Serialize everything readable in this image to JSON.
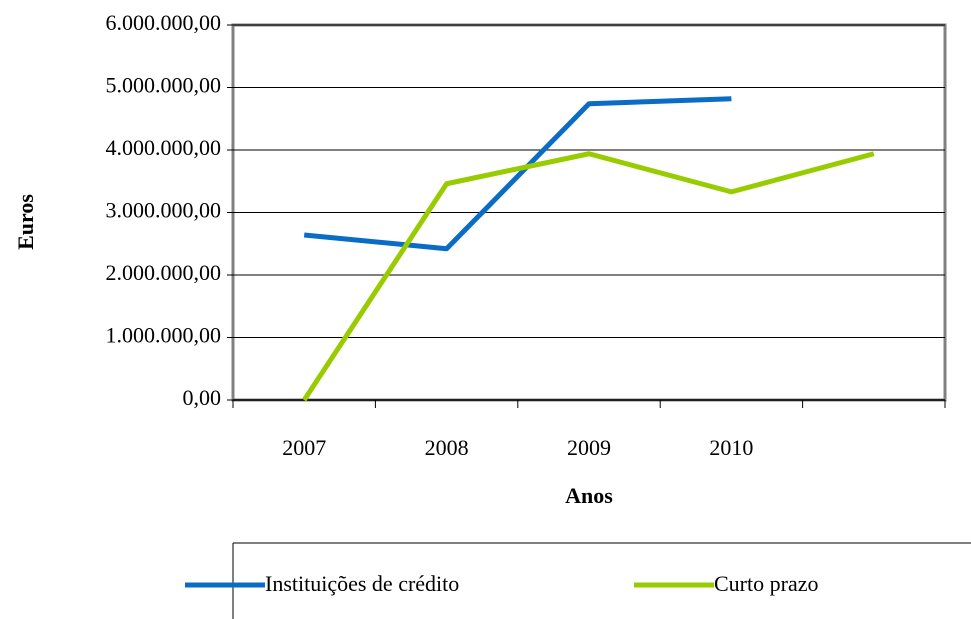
{
  "chart_data": {
    "type": "line",
    "categories": [
      "2007",
      "2008",
      "2009",
      "2010",
      null
    ],
    "series": [
      {
        "name": "Instituições de crédito",
        "color": "#0a6cc4",
        "values": [
          2640000,
          2420000,
          4740000,
          4820000,
          null
        ]
      },
      {
        "name": "Curto prazo",
        "color": "#99cc00",
        "values": [
          0,
          3460000,
          3940000,
          3330000,
          3940000
        ]
      }
    ],
    "ylim": [
      0,
      6000000
    ],
    "yticks": [
      {
        "value": 0,
        "label": "0,00"
      },
      {
        "value": 1000000,
        "label": "1.000.000,00"
      },
      {
        "value": 2000000,
        "label": "2.000.000,00"
      },
      {
        "value": 3000000,
        "label": "3.000.000,00"
      },
      {
        "value": 4000000,
        "label": "4.000.000,00"
      },
      {
        "value": 5000000,
        "label": "5.000.000,00"
      },
      {
        "value": 6000000,
        "label": "6.000.000,00"
      }
    ],
    "xlabel": "Anos",
    "ylabel": "Euros",
    "grid": true,
    "legend": "bottom"
  }
}
